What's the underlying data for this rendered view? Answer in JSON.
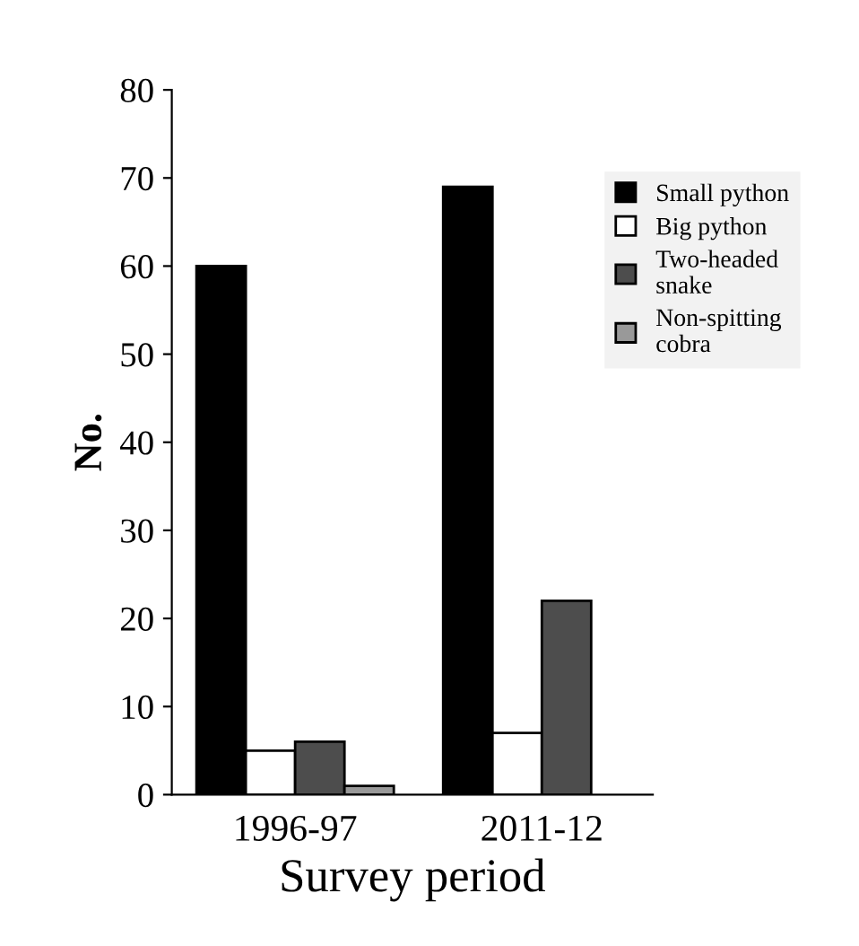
{
  "chart_data": {
    "type": "bar",
    "xlabel": "Survey period",
    "ylabel": "No.",
    "categories": [
      "1996-97",
      "2011-12"
    ],
    "series": [
      {
        "name": "Small python",
        "color": "#000000",
        "values": [
          60,
          69
        ]
      },
      {
        "name": "Big python",
        "color": "#ffffff",
        "values": [
          5,
          7
        ]
      },
      {
        "name": "Two-headed\nsnake",
        "color": "#4d4d4d",
        "values": [
          6,
          22
        ]
      },
      {
        "name": "Non-spitting\ncobra",
        "color": "#999999",
        "values": [
          1,
          null
        ]
      }
    ],
    "ylim": [
      0,
      80
    ],
    "yticks": [
      0,
      10,
      20,
      30,
      40,
      50,
      60,
      70,
      80
    ],
    "grid": false,
    "legend": "top right"
  }
}
